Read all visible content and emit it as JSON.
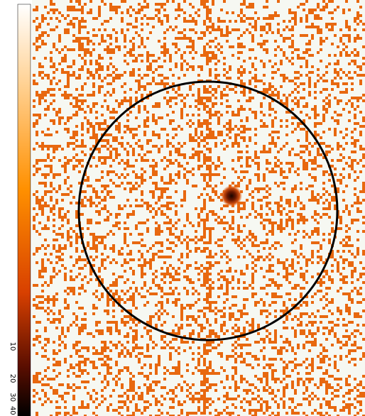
{
  "colorbar": {
    "ticks": [
      10,
      20,
      30,
      40
    ]
  }
}
